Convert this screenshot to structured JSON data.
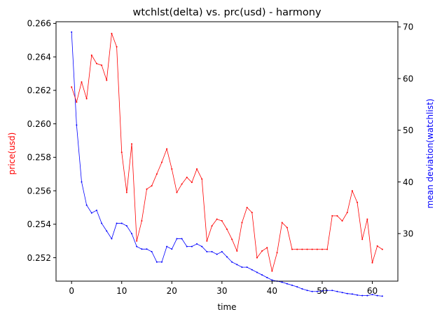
{
  "chart_data": {
    "type": "line",
    "title": "wtchlst(delta) vs. prc(usd) - harmony",
    "xlabel": "time",
    "ylabel_left": "price(usd)",
    "ylabel_right": "mean deviation(watchlist)",
    "colors": {
      "price": "#ff0000",
      "watchlist": "#0000ff",
      "axes": "#000000"
    },
    "xlim": [
      -3.1,
      65.1
    ],
    "ylim_left": [
      0.2506,
      0.2661
    ],
    "ylim_right": [
      20.8,
      71.0
    ],
    "x_ticks": [
      0,
      10,
      20,
      30,
      40,
      50,
      60
    ],
    "y_ticks_left": [
      {
        "value": 0.252,
        "label": "0.252"
      },
      {
        "value": 0.254,
        "label": "0.254"
      },
      {
        "value": 0.256,
        "label": "0.256"
      },
      {
        "value": 0.258,
        "label": "0.258"
      },
      {
        "value": 0.26,
        "label": "0.260"
      },
      {
        "value": 0.262,
        "label": "0.262"
      },
      {
        "value": 0.264,
        "label": "0.264"
      },
      {
        "value": 0.266,
        "label": "0.266"
      }
    ],
    "y_ticks_right": [
      30,
      40,
      50,
      60,
      70
    ],
    "grid": false,
    "series": [
      {
        "key": "price",
        "axis": "left",
        "x": [
          0,
          1,
          2,
          3,
          4,
          5,
          6,
          7,
          8,
          9,
          10,
          11,
          12,
          13,
          14,
          15,
          16,
          17,
          18,
          19,
          20,
          21,
          22,
          23,
          24,
          25,
          26,
          27,
          28,
          29,
          30,
          31,
          32,
          33,
          34,
          35,
          36,
          37,
          38,
          39,
          40,
          41,
          42,
          43,
          44,
          45,
          46,
          47,
          48,
          49,
          50,
          51,
          52,
          53,
          54,
          55,
          56,
          57,
          58,
          59,
          60,
          61,
          62
        ],
        "values": [
          0.2622,
          0.2613,
          0.2625,
          0.2615,
          0.2641,
          0.2636,
          0.2635,
          0.2626,
          0.2654,
          0.2646,
          0.2583,
          0.2559,
          0.2588,
          0.253,
          0.2542,
          0.2561,
          0.2563,
          0.257,
          0.2577,
          0.2585,
          0.2573,
          0.2559,
          0.2564,
          0.2568,
          0.2565,
          0.2573,
          0.2567,
          0.253,
          0.2539,
          0.2543,
          0.2542,
          0.2537,
          0.2531,
          0.2524,
          0.2541,
          0.255,
          0.2547,
          0.252,
          0.2524,
          0.2526,
          0.2512,
          0.2523,
          0.2541,
          0.2538,
          0.2525,
          0.2525,
          0.2525,
          0.2525,
          0.2525,
          0.2525,
          0.2525,
          0.2525,
          0.2545,
          0.2545,
          0.2542,
          0.2547,
          0.256,
          0.2553,
          0.2531,
          0.2543,
          0.2517,
          0.2527,
          0.2525
        ]
      },
      {
        "key": "watchlist",
        "axis": "right",
        "x": [
          0,
          1,
          2,
          3,
          4,
          5,
          6,
          7,
          8,
          9,
          10,
          11,
          12,
          13,
          14,
          15,
          16,
          17,
          18,
          19,
          20,
          21,
          22,
          23,
          24,
          25,
          26,
          27,
          28,
          29,
          30,
          31,
          32,
          33,
          34,
          35,
          36,
          37,
          38,
          39,
          40,
          41,
          42,
          43,
          44,
          45,
          46,
          47,
          48,
          49,
          50,
          51,
          52,
          53,
          54,
          55,
          56,
          57,
          58,
          59,
          60,
          61,
          62
        ],
        "values": [
          69.0,
          51.0,
          40.0,
          35.5,
          34.0,
          34.5,
          32.0,
          30.5,
          29.0,
          32.0,
          32.0,
          31.5,
          30.0,
          27.5,
          27.0,
          27.0,
          26.5,
          24.5,
          24.5,
          27.5,
          27.0,
          29.0,
          29.0,
          27.5,
          27.5,
          28.0,
          27.5,
          26.5,
          26.5,
          26.0,
          26.5,
          25.5,
          24.5,
          24.0,
          23.5,
          23.5,
          23.0,
          22.5,
          22.0,
          21.5,
          21.0,
          20.8,
          20.6,
          20.3,
          20.0,
          19.7,
          19.3,
          19.0,
          18.8,
          18.8,
          18.9,
          19.0,
          19.0,
          18.8,
          18.6,
          18.4,
          18.3,
          18.1,
          18.0,
          18.0,
          18.2,
          18.0,
          17.9
        ]
      }
    ]
  }
}
